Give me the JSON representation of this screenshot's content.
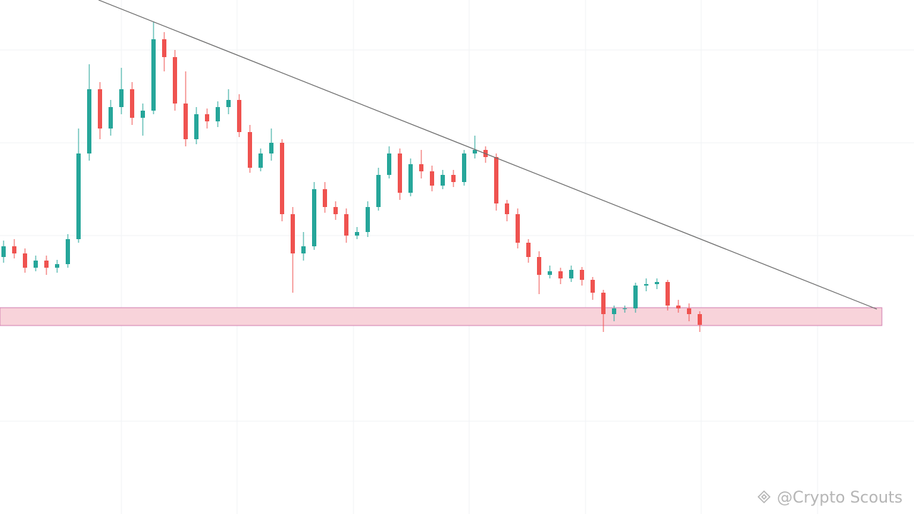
{
  "chart_data": {
    "type": "candlestick",
    "watermark": "@Crypto Scouts",
    "up_color": "#26a69a",
    "down_color": "#ef5350",
    "ylim": [
      0,
      720
    ],
    "support_zone": [
      264,
      289
    ],
    "open": [
      360,
      375,
      365,
      345,
      355,
      345,
      350,
      385,
      505,
      595,
      540,
      570,
      595,
      555,
      565,
      665,
      640,
      575,
      525,
      560,
      550,
      570,
      580,
      535,
      485,
      505,
      520,
      420,
      365,
      375,
      455,
      430,
      420,
      390,
      395,
      430,
      475,
      505,
      450,
      490,
      480,
      460,
      475,
      465,
      505,
      510,
      500,
      435,
      420,
      380,
      360,
      335,
      340,
      330,
      342,
      328,
      310,
      280,
      288,
      288,
      320,
      322,
      325,
      292,
      288,
      280
    ],
    "high": [
      383,
      385,
      372,
      362,
      362,
      356,
      392,
      540,
      630,
      605,
      580,
      625,
      605,
      575,
      690,
      675,
      650,
      620,
      570,
      568,
      578,
      595,
      588,
      545,
      512,
      540,
      525,
      430,
      395,
      465,
      465,
      438,
      428,
      402,
      438,
      485,
      515,
      512,
      498,
      510,
      488,
      482,
      482,
      510,
      530,
      515,
      505,
      440,
      428,
      385,
      368,
      348,
      345,
      348,
      346,
      332,
      314,
      292,
      292,
      324,
      330,
      330,
      328,
      300,
      295,
      284
    ],
    "low": [
      352,
      358,
      338,
      340,
      335,
      338,
      345,
      380,
      495,
      525,
      530,
      560,
      545,
      530,
      560,
      620,
      565,
      515,
      518,
      540,
      542,
      560,
      528,
      478,
      480,
      495,
      410,
      310,
      355,
      370,
      422,
      412,
      380,
      385,
      388,
      425,
      470,
      440,
      445,
      470,
      452,
      455,
      458,
      460,
      498,
      492,
      425,
      410,
      372,
      352,
      308,
      330,
      322,
      325,
      320,
      300,
      255,
      270,
      282,
      282,
      312,
      315,
      285,
      282,
      270,
      255
    ],
    "close": [
      375,
      365,
      345,
      355,
      345,
      350,
      385,
      505,
      595,
      540,
      570,
      595,
      555,
      565,
      665,
      640,
      575,
      525,
      560,
      550,
      570,
      580,
      535,
      485,
      505,
      520,
      420,
      365,
      375,
      455,
      430,
      420,
      390,
      395,
      430,
      475,
      505,
      450,
      490,
      480,
      460,
      475,
      465,
      505,
      510,
      500,
      435,
      420,
      380,
      360,
      335,
      340,
      330,
      342,
      328,
      310,
      280,
      288,
      288,
      320,
      322,
      325,
      292,
      288,
      280,
      265
    ]
  }
}
